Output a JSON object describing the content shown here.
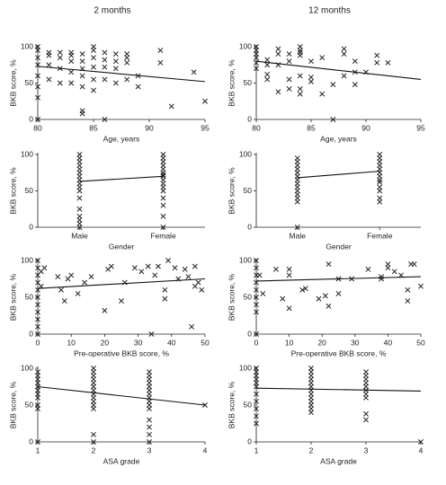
{
  "chart_data": [
    {
      "type": "scatter",
      "title": "2 months",
      "x_label": "Age, years",
      "y_label": "BKB score, %",
      "xlim": [
        80,
        95
      ],
      "ylim": [
        0,
        100
      ],
      "xticks": [
        80,
        85,
        90,
        95
      ],
      "yticks": [
        0,
        50,
        100
      ],
      "x": [
        80,
        80,
        80,
        80,
        80,
        80,
        80,
        80,
        81,
        81,
        81,
        81,
        82,
        82,
        82,
        82,
        83,
        83,
        83,
        83,
        83,
        84,
        84,
        84,
        84,
        84,
        84,
        84,
        85,
        85,
        85,
        85,
        85,
        85,
        86,
        86,
        86,
        86,
        86,
        87,
        87,
        87,
        87,
        88,
        88,
        88,
        88,
        89,
        89,
        91,
        91,
        92,
        94,
        95
      ],
      "y": [
        0,
        30,
        45,
        60,
        75,
        85,
        95,
        100,
        55,
        75,
        88,
        92,
        50,
        70,
        85,
        92,
        50,
        65,
        80,
        88,
        92,
        45,
        60,
        70,
        80,
        90,
        12,
        8,
        40,
        55,
        72,
        85,
        95,
        100,
        55,
        72,
        82,
        92,
        0,
        50,
        70,
        80,
        90,
        55,
        78,
        85,
        90,
        45,
        60,
        78,
        95,
        18,
        65,
        25
      ],
      "fit": {
        "x": [
          80,
          95
        ],
        "y": [
          73,
          52
        ]
      }
    },
    {
      "type": "scatter",
      "title": "12 months",
      "x_label": "Age, years",
      "y_label": "BKB score, %",
      "xlim": [
        80,
        95
      ],
      "ylim": [
        0,
        100
      ],
      "xticks": [
        80,
        85,
        90,
        95
      ],
      "yticks": [
        0,
        50,
        100
      ],
      "x": [
        80,
        80,
        80,
        80,
        80,
        80,
        81,
        81,
        81,
        81,
        82,
        82,
        82,
        82,
        83,
        83,
        83,
        83,
        84,
        84,
        84,
        84,
        84,
        84,
        84,
        85,
        85,
        85,
        86,
        86,
        87,
        87,
        88,
        88,
        88,
        89,
        89,
        89,
        90,
        91,
        91,
        92
      ],
      "y": [
        70,
        78,
        85,
        90,
        95,
        100,
        55,
        62,
        75,
        82,
        38,
        75,
        90,
        97,
        42,
        55,
        80,
        90,
        35,
        42,
        60,
        88,
        92,
        95,
        100,
        52,
        58,
        80,
        35,
        85,
        0,
        48,
        60,
        90,
        97,
        48,
        65,
        80,
        65,
        78,
        88,
        78
      ],
      "fit": {
        "x": [
          80,
          95
        ],
        "y": [
          80,
          55
        ]
      }
    },
    {
      "type": "strip",
      "x_label": "Gender",
      "y_label": "BKB score, %",
      "ylim": [
        0,
        100
      ],
      "yticks": [
        0,
        50,
        100
      ],
      "categories": [
        "Male",
        "Female"
      ],
      "values": [
        [
          0,
          5,
          10,
          15,
          25,
          40,
          50,
          55,
          60,
          65,
          70,
          75,
          80,
          85,
          90,
          95,
          100
        ],
        [
          0,
          15,
          30,
          40,
          50,
          55,
          60,
          65,
          70,
          72,
          75,
          80,
          85,
          90,
          95,
          100
        ]
      ],
      "fit": {
        "y": [
          63,
          70
        ]
      }
    },
    {
      "type": "strip",
      "x_label": "Gender",
      "y_label": "BKB score, %",
      "ylim": [
        0,
        100
      ],
      "yticks": [
        0,
        50,
        100
      ],
      "categories": [
        "Male",
        "Female"
      ],
      "values": [
        [
          0,
          35,
          40,
          45,
          50,
          55,
          60,
          65,
          70,
          75,
          80,
          85,
          90,
          95
        ],
        [
          35,
          40,
          50,
          55,
          62,
          65,
          70,
          75,
          80,
          85,
          90,
          95,
          100
        ]
      ],
      "fit": {
        "y": [
          68,
          77
        ]
      }
    },
    {
      "type": "scatter",
      "x_label": "Pre-operative BKB score, %",
      "y_label": "BKB score, %",
      "xlim": [
        0,
        50
      ],
      "ylim": [
        0,
        100
      ],
      "xticks": [
        0,
        10,
        20,
        30,
        40,
        50
      ],
      "yticks": [
        0,
        50,
        100
      ],
      "x": [
        0,
        0,
        0,
        0,
        0,
        0,
        0,
        0,
        0,
        0,
        0,
        1,
        1,
        2,
        6,
        7,
        8,
        9,
        10,
        12,
        14,
        16,
        20,
        21,
        22,
        25,
        26,
        29,
        31,
        33,
        34,
        35,
        36,
        38,
        38,
        39,
        41,
        42,
        44,
        45,
        46,
        47,
        47,
        48,
        49
      ],
      "y": [
        0,
        10,
        20,
        30,
        40,
        50,
        60,
        70,
        80,
        90,
        100,
        85,
        65,
        90,
        78,
        60,
        45,
        75,
        80,
        55,
        70,
        78,
        32,
        88,
        92,
        45,
        70,
        90,
        85,
        92,
        0,
        80,
        92,
        60,
        48,
        100,
        90,
        75,
        88,
        78,
        10,
        92,
        65,
        70,
        60
      ],
      "fit": {
        "x": [
          0,
          50
        ],
        "y": [
          62,
          75
        ]
      }
    },
    {
      "type": "scatter",
      "x_label": "Pre-operative BKB score, %",
      "y_label": "BKB score, %",
      "xlim": [
        0,
        50
      ],
      "ylim": [
        0,
        100
      ],
      "xticks": [
        0,
        10,
        20,
        30,
        40,
        50
      ],
      "yticks": [
        0,
        50,
        100
      ],
      "x": [
        0,
        0,
        0,
        0,
        0,
        0,
        0,
        0,
        0,
        1,
        2,
        6,
        8,
        10,
        10,
        10,
        14,
        15,
        19,
        21,
        22,
        22,
        25,
        25,
        29,
        34,
        38,
        38,
        40,
        40,
        42,
        44,
        46,
        46,
        47,
        48,
        50
      ],
      "y": [
        0,
        30,
        40,
        50,
        60,
        70,
        80,
        90,
        100,
        80,
        55,
        88,
        48,
        80,
        88,
        35,
        60,
        62,
        48,
        52,
        38,
        95,
        55,
        75,
        75,
        88,
        75,
        78,
        95,
        90,
        85,
        80,
        60,
        45,
        95,
        95,
        65
      ],
      "fit": {
        "x": [
          0,
          50
        ],
        "y": [
          72,
          78
        ]
      }
    },
    {
      "type": "scatter",
      "x_label": "ASA grade",
      "y_label": "BKB score, %",
      "xlim": [
        1,
        4
      ],
      "ylim": [
        0,
        100
      ],
      "xticks": [
        1,
        2,
        3,
        4
      ],
      "yticks": [
        0,
        50,
        100
      ],
      "x": [
        1,
        1,
        1,
        1,
        1,
        1,
        1,
        1,
        1,
        1,
        1,
        2,
        2,
        2,
        2,
        2,
        2,
        2,
        2,
        2,
        2,
        2,
        2,
        2,
        2,
        3,
        3,
        3,
        3,
        3,
        3,
        3,
        3,
        3,
        3,
        3,
        3,
        3,
        3,
        3,
        4
      ],
      "y": [
        0,
        45,
        50,
        60,
        65,
        70,
        75,
        80,
        85,
        90,
        95,
        0,
        10,
        45,
        50,
        55,
        60,
        65,
        70,
        75,
        80,
        85,
        90,
        95,
        100,
        0,
        10,
        20,
        30,
        45,
        50,
        55,
        60,
        65,
        70,
        75,
        80,
        85,
        90,
        95,
        50
      ],
      "fit": {
        "x": [
          1,
          4
        ],
        "y": [
          75,
          50
        ]
      }
    },
    {
      "type": "scatter",
      "x_label": "ASA grade",
      "y_label": "BKB score, %",
      "xlim": [
        1,
        4
      ],
      "ylim": [
        0,
        100
      ],
      "xticks": [
        1,
        2,
        3,
        4
      ],
      "yticks": [
        0,
        50,
        100
      ],
      "x": [
        1,
        1,
        1,
        1,
        1,
        1,
        1,
        1,
        1,
        1,
        1,
        2,
        2,
        2,
        2,
        2,
        2,
        2,
        2,
        2,
        2,
        2,
        2,
        2,
        3,
        3,
        3,
        3,
        3,
        3,
        3,
        3,
        3,
        3,
        4
      ],
      "y": [
        25,
        35,
        45,
        55,
        65,
        75,
        80,
        85,
        90,
        95,
        100,
        40,
        45,
        50,
        55,
        60,
        65,
        70,
        75,
        80,
        85,
        90,
        95,
        100,
        30,
        38,
        60,
        65,
        70,
        75,
        80,
        85,
        90,
        95,
        0
      ],
      "fit": {
        "x": [
          1,
          4
        ],
        "y": [
          73,
          69
        ]
      }
    }
  ]
}
